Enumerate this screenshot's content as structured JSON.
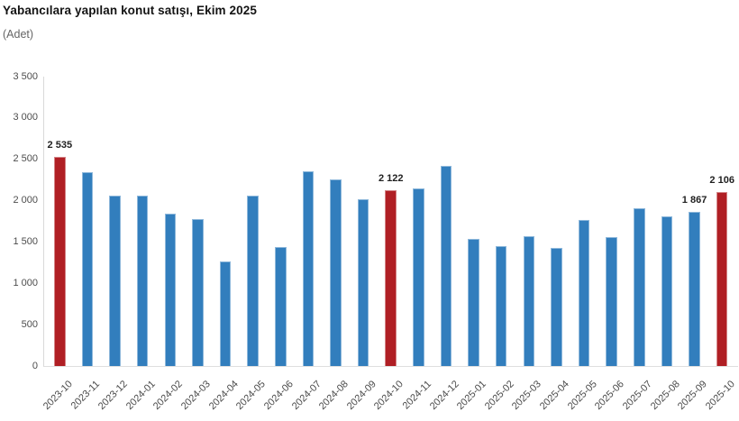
{
  "chart_data": {
    "type": "bar",
    "title": "Yabancılara yapılan konut satışı, Ekim 2025",
    "subtitle": "(Adet)",
    "xlabel": "",
    "ylabel": "",
    "ylim": [
      0,
      3500
    ],
    "ytick_step": 500,
    "ytick_labels": [
      "0",
      "500",
      "1 000",
      "1 500",
      "2 000",
      "2 500",
      "3 000",
      "3 500"
    ],
    "grid": false,
    "legend": false,
    "categories": [
      "2023-10",
      "2023-11",
      "2023-12",
      "2024-01",
      "2024-02",
      "2024-03",
      "2024-04",
      "2024-05",
      "2024-06",
      "2024-07",
      "2024-08",
      "2024-09",
      "2024-10",
      "2024-11",
      "2024-12",
      "2025-01",
      "2025-02",
      "2025-03",
      "2025-04",
      "2025-05",
      "2025-06",
      "2025-07",
      "2025-08",
      "2025-09",
      "2025-10"
    ],
    "values": [
      2535,
      2340,
      2060,
      2060,
      1840,
      1780,
      1270,
      2060,
      1440,
      2350,
      2260,
      2020,
      2122,
      2150,
      2420,
      1540,
      1450,
      1570,
      1430,
      1770,
      1560,
      1910,
      1810,
      1867,
      2106
    ],
    "highlight_indices": [
      0,
      12,
      24
    ],
    "data_labels": {
      "0": "2 535",
      "12": "2 122",
      "23": "1 867",
      "24": "2 106"
    },
    "colors": {
      "bar": "#327EBD",
      "highlight": "#B01F24"
    }
  }
}
